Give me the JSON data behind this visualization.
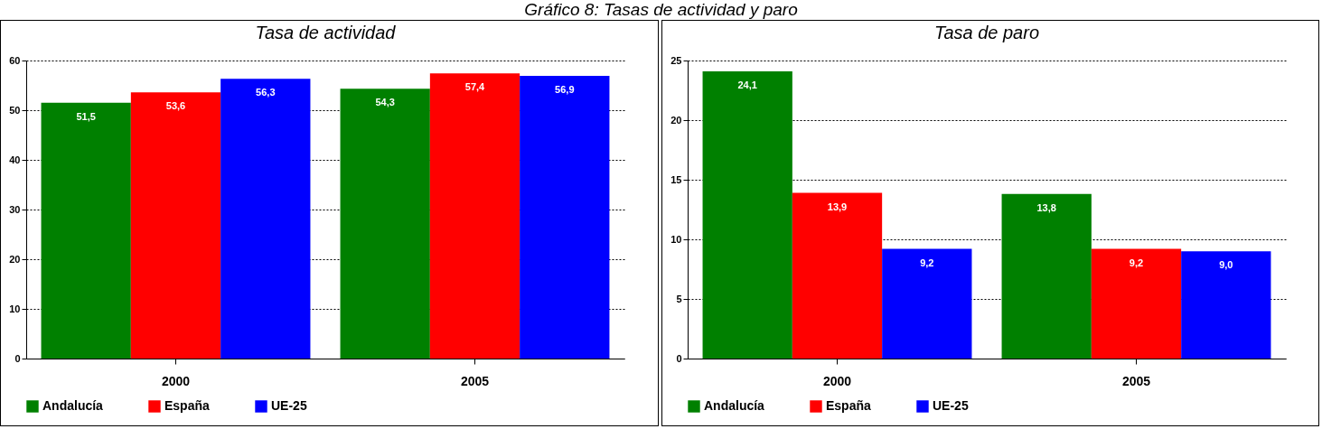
{
  "chart_data": [
    {
      "type": "bar",
      "title": "Tasa de actividad",
      "annotations": [
        "Gráfico 8: Tasas de actividad y paro"
      ],
      "categories": [
        "2000",
        "2005"
      ],
      "ylim": [
        0,
        60
      ],
      "yticks": [
        0,
        10,
        20,
        30,
        40,
        50,
        60
      ],
      "grid": "y",
      "legend": "bottom",
      "series": [
        {
          "name": "Andalucía",
          "color": "#008000",
          "values": [
            51.5,
            54.3
          ],
          "value_labels": [
            "51,5",
            "54,3"
          ]
        },
        {
          "name": "España",
          "color": "#ff0000",
          "values": [
            53.6,
            57.4
          ],
          "value_labels": [
            "53,6",
            "57,4"
          ]
        },
        {
          "name": "UE-25",
          "color": "#0000ff",
          "values": [
            56.3,
            56.9
          ],
          "value_labels": [
            "56,3",
            "56,9"
          ]
        }
      ]
    },
    {
      "type": "bar",
      "title": "Tasa de paro",
      "categories": [
        "2000",
        "2005"
      ],
      "ylim": [
        0,
        25
      ],
      "yticks": [
        0,
        5,
        10,
        15,
        20,
        25
      ],
      "grid": "y",
      "legend": "bottom",
      "series": [
        {
          "name": "Andalucía",
          "color": "#008000",
          "values": [
            24.1,
            13.8
          ],
          "value_labels": [
            "24,1",
            "13,8"
          ]
        },
        {
          "name": "España",
          "color": "#ff0000",
          "values": [
            13.9,
            9.2
          ],
          "value_labels": [
            "13,9",
            "9,2"
          ]
        },
        {
          "name": "UE-25",
          "color": "#0000ff",
          "values": [
            9.2,
            9.0
          ],
          "value_labels": [
            "9,2",
            "9,0"
          ]
        }
      ]
    }
  ]
}
